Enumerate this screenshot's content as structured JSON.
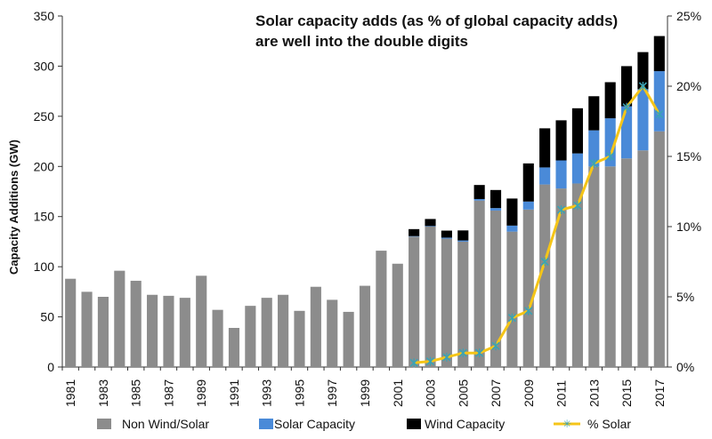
{
  "chart_data": {
    "type": "bar",
    "title_line1": "Solar capacity adds (as % of global  capacity adds)",
    "title_line2": "are well into the double digits",
    "ylabel": "Capacity Additions (GW)",
    "ylim": [
      0,
      350
    ],
    "y2lim": [
      0,
      25
    ],
    "y_ticks": [
      "0",
      "50",
      "100",
      "150",
      "200",
      "250",
      "300",
      "350"
    ],
    "y2_ticks": [
      "0%",
      "5%",
      "10%",
      "15%",
      "20%",
      "25%"
    ],
    "grid": false,
    "legend_position": "bottom",
    "categories": [
      "1981",
      "1982",
      "1983",
      "1984",
      "1985",
      "1986",
      "1987",
      "1988",
      "1989",
      "1990",
      "1991",
      "1992",
      "1993",
      "1994",
      "1995",
      "1996",
      "1997",
      "1998",
      "1999",
      "2000",
      "2001",
      "2002",
      "2003",
      "2004",
      "2005",
      "2006",
      "2007",
      "2008",
      "2009",
      "2010",
      "2011",
      "2012",
      "2013",
      "2014",
      "2015",
      "2016",
      "2017"
    ],
    "series": [
      {
        "name": "Non Wind/Solar",
        "color": "#8c8c8c",
        "values": [
          88,
          75,
          70,
          96,
          86,
          72,
          71,
          69,
          91,
          57,
          39,
          61,
          69,
          72,
          56,
          80,
          67,
          55,
          81,
          116,
          103,
          130,
          140,
          128,
          125,
          166,
          156,
          135,
          157,
          182,
          178,
          183,
          200,
          200,
          208,
          216,
          235
        ]
      },
      {
        "name": "Solar Capacity",
        "color": "#4a8ad8",
        "values": [
          0,
          0,
          0,
          0,
          0,
          0,
          0,
          0,
          0,
          0,
          0,
          0,
          0,
          0,
          0,
          0,
          0,
          0,
          0,
          0,
          0,
          0.5,
          0.6,
          1,
          1.2,
          1.5,
          2.5,
          6,
          8,
          17,
          28,
          30,
          36,
          48,
          52,
          61,
          60
        ]
      },
      {
        "name": "Wind Capacity",
        "color": "#000000",
        "values": [
          0,
          0,
          0,
          0,
          0,
          0,
          0,
          0,
          0,
          0,
          0,
          0,
          0,
          0,
          0,
          0,
          0,
          0,
          0,
          0,
          0,
          7,
          7,
          7,
          10,
          14,
          18,
          27,
          38,
          39,
          40,
          45,
          34,
          36,
          40,
          37,
          35
        ]
      }
    ],
    "line_series": {
      "name": "% Solar",
      "color": "#f5c518",
      "axis": "right",
      "start_index": 21,
      "values": [
        0.3,
        0.4,
        0.7,
        1.0,
        1.0,
        1.5,
        3.5,
        4.0,
        7.5,
        11.2,
        11.5,
        14.5,
        15.0,
        18.5,
        20.0,
        18.0
      ]
    },
    "x_tick_labels": [
      "1981",
      "1983",
      "1985",
      "1987",
      "1989",
      "1991",
      "1993",
      "1995",
      "1997",
      "1999",
      "2001",
      "2003",
      "2005",
      "2007",
      "2009",
      "2011",
      "2013",
      "2015",
      "2017"
    ]
  }
}
